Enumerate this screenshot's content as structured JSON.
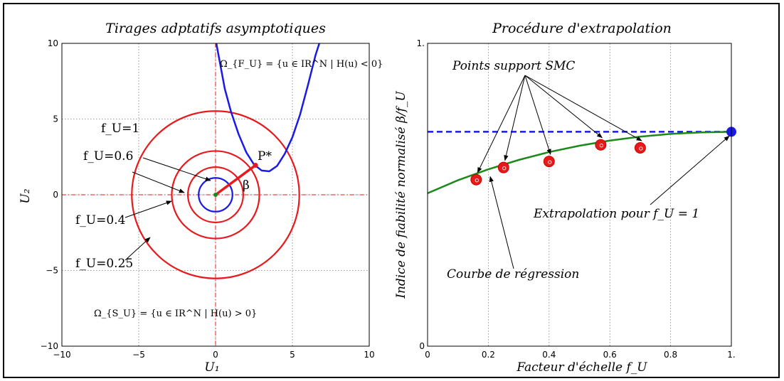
{
  "colors": {
    "red": "#e8191c",
    "blue": "#1a1ae6",
    "green": "#1b8a1b",
    "dashblue": "#1a1ae6",
    "grid": "#7f7f7f"
  },
  "chart_data": [
    {
      "type": "line",
      "title": "Tirages adptatifs asymptotiques",
      "xlabel": "U₁",
      "ylabel": "U₂",
      "xlim": [
        -10,
        10
      ],
      "ylim": [
        -10,
        10
      ],
      "xticks": [
        -10,
        -5,
        0,
        5,
        10
      ],
      "yticks": [
        -10,
        -5,
        0,
        5,
        10
      ],
      "xtick_labels": [
        "−10",
        "−5",
        "0",
        "5",
        "10"
      ],
      "ytick_labels": [
        "−10",
        "−5",
        "0",
        "5",
        "10"
      ],
      "grid": true,
      "circles": [
        {
          "radius": 1.1,
          "color": "blue",
          "label": "f_U=1"
        },
        {
          "radius": 1.8,
          "color": "red",
          "label": "f_U=0.6"
        },
        {
          "radius": 2.85,
          "color": "red",
          "label": "f_U=0.4"
        },
        {
          "radius": 5.45,
          "color": "red",
          "label": "f_U=0.25"
        }
      ],
      "limit_state_curve": {
        "color": "blue",
        "points": [
          [
            0.05,
            10
          ],
          [
            0.6,
            7.0
          ],
          [
            1.0,
            5.5
          ],
          [
            1.5,
            4.0
          ],
          [
            2.0,
            2.8
          ],
          [
            2.5,
            2.0
          ],
          [
            3.0,
            1.6
          ],
          [
            3.5,
            1.55
          ],
          [
            4.0,
            1.9
          ],
          [
            4.5,
            2.7
          ],
          [
            5.0,
            3.8
          ],
          [
            5.5,
            5.3
          ],
          [
            6.0,
            7.2
          ],
          [
            6.5,
            9.2
          ],
          [
            6.75,
            10
          ]
        ]
      },
      "design_point": {
        "u1": 2.6,
        "u2": 1.95,
        "label": "P*"
      },
      "beta_label": "β",
      "failure_domain_label": "Ω_{F_U} = {u ∈ IR^N | H(u) < 0}",
      "safe_domain_label": "Ω_{S_U} = {u ∈ IR^N | H(u) > 0}",
      "labels": {
        "f1_label": "f_U=1",
        "f06_label": "f_U=0.6",
        "f04_label": "f_U=0.4",
        "f025_label": "f_U=0.25"
      }
    },
    {
      "type": "scatter",
      "title": "Procédure d'extrapolation",
      "xlabel": "Facteur d'échelle f_U",
      "ylabel": "Indice de fiabilité normalisé β/f_U",
      "xlim": [
        0,
        1
      ],
      "ylim": [
        0,
        1
      ],
      "xticks": [
        0,
        0.2,
        0.4,
        0.6,
        0.8,
        1.0
      ],
      "xtick_labels": [
        "0",
        "0.2",
        "0.4",
        "0.6",
        "0.8",
        "1."
      ],
      "yticks": [
        0,
        1
      ],
      "ytick_labels": [
        "0",
        "1."
      ],
      "grid": true,
      "support_points": [
        {
          "x": 0.16,
          "y": 0.55
        },
        {
          "x": 0.25,
          "y": 0.59
        },
        {
          "x": 0.4,
          "y": 0.61
        },
        {
          "x": 0.57,
          "y": 0.665
        },
        {
          "x": 0.7,
          "y": 0.655
        }
      ],
      "regression_curve": [
        [
          0,
          0.505
        ],
        [
          0.1,
          0.548
        ],
        [
          0.2,
          0.584
        ],
        [
          0.3,
          0.615
        ],
        [
          0.4,
          0.641
        ],
        [
          0.5,
          0.662
        ],
        [
          0.6,
          0.679
        ],
        [
          0.7,
          0.692
        ],
        [
          0.8,
          0.701
        ],
        [
          0.9,
          0.706
        ],
        [
          1.0,
          0.708
        ]
      ],
      "extrapolated_point": {
        "x": 1.0,
        "y": 0.708
      },
      "dashed_level": 0.708,
      "annotations": {
        "support": "Points support SMC",
        "regression": "Courbe de régression",
        "extrapolation": "Extrapolation pour f_U = 1"
      }
    }
  ]
}
